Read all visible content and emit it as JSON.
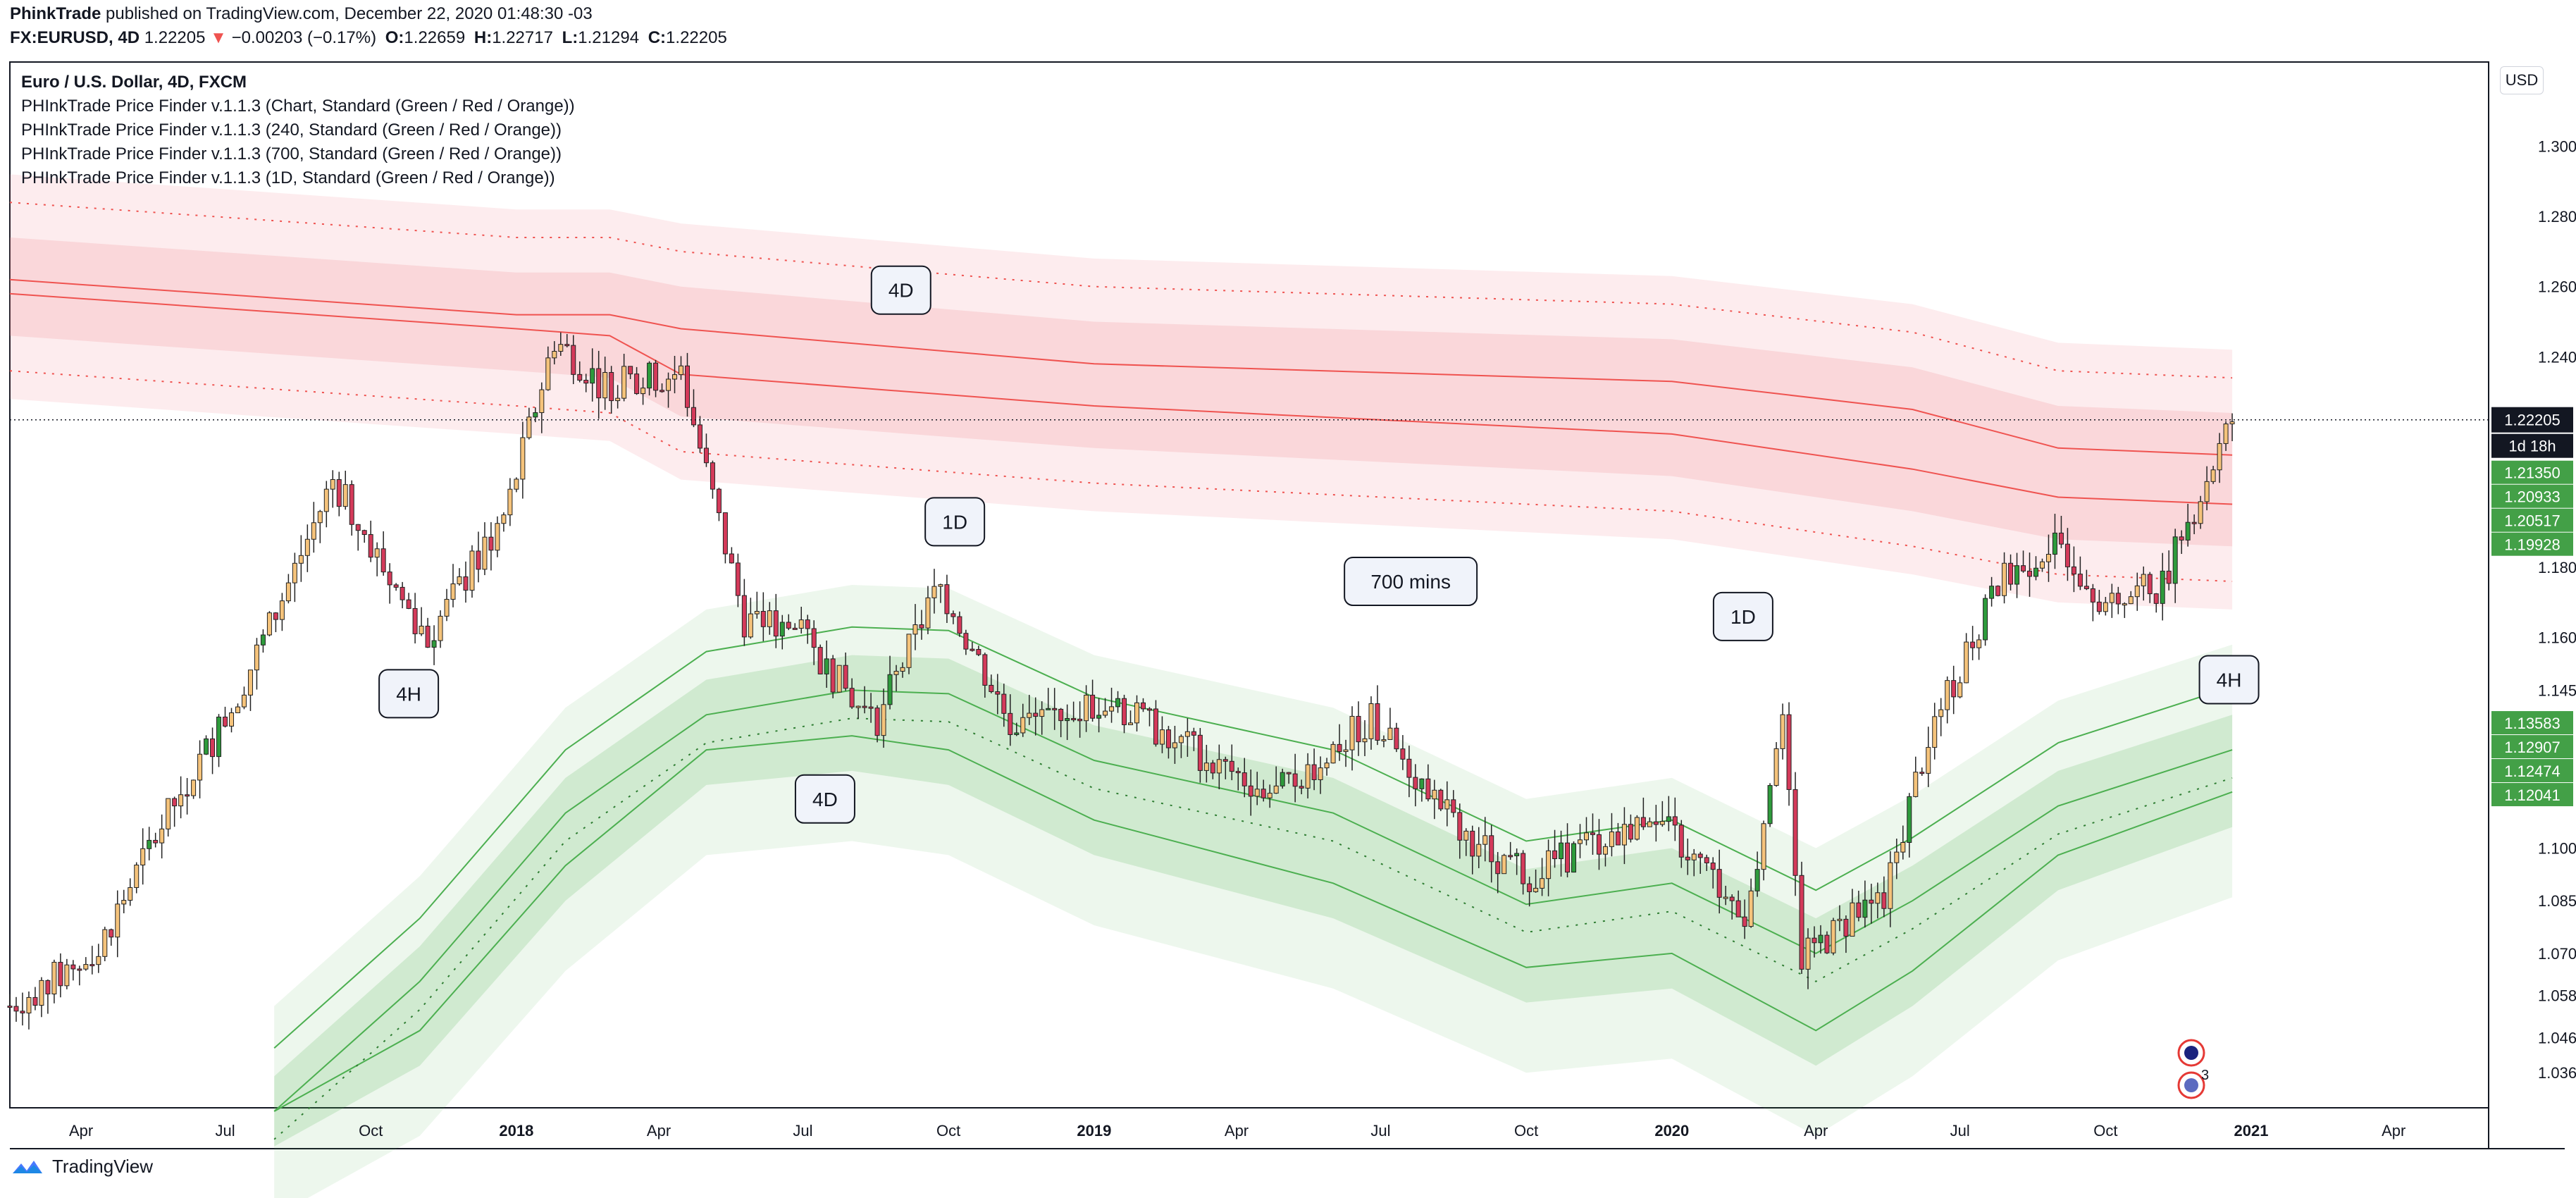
{
  "header": {
    "author": "PhinkTrade",
    "published_text": "published on TradingView.com, December 22, 2020 01:48:30 -03",
    "symbol": "FX:EURUSD, 4D",
    "last_price": "1.22205",
    "change_arrow": "▼",
    "change": "−0.00203 (−0.17%)",
    "o_label": "O:",
    "o": "1.22659",
    "h_label": "H:",
    "h": "1.22717",
    "l_label": "L:",
    "l": "1.21294",
    "c_label": "C:",
    "c": "1.22205"
  },
  "legend": {
    "title": "Euro / U.S. Dollar, 4D, FXCM",
    "indicators": [
      "PHInkTrade Price Finder v.1.1.3 (Chart, Standard (Green / Red / Orange))",
      "PHInkTrade Price Finder v.1.1.3 (240, Standard (Green / Red / Orange))",
      "PHInkTrade Price Finder v.1.1.3 (700, Standard (Green / Red / Orange))",
      "PHInkTrade Price Finder v.1.1.3 (1D, Standard (Green / Red / Orange))"
    ]
  },
  "currency_button": "USD",
  "footer": {
    "brand": "TradingView"
  },
  "colors": {
    "up_candle": "#f5c37b",
    "down_candle": "#d43a5a",
    "green_candle": "#2e9b3c",
    "red_band": "#f28b95",
    "green_band": "#4caf50",
    "axis_text": "#131722",
    "price_tag": "#131722"
  },
  "chart_data": {
    "type": "candlestick",
    "title": "Euro / U.S. Dollar, 4D, FXCM",
    "ylim": [
      1.026,
      1.324
    ],
    "y_ticks": [
      "1.30000",
      "1.28000",
      "1.26000",
      "1.24000",
      "1.18000",
      "1.16000",
      "1.14500",
      "1.10000",
      "1.08500",
      "1.07000",
      "1.05800",
      "1.04600",
      "1.03600"
    ],
    "y_top_partial": "1",
    "x_ticks": [
      "Apr",
      "Jul",
      "Oct",
      "2018",
      "Apr",
      "Jul",
      "Oct",
      "2019",
      "Apr",
      "Jul",
      "Oct",
      "2020",
      "Apr",
      "Jul",
      "Oct",
      "2021",
      "Apr"
    ],
    "x_range": [
      "2017-02-15",
      "2021-05-31"
    ],
    "current_price": {
      "value": 1.22205,
      "label": "1.22205",
      "countdown": "1d 18h"
    },
    "price_tags": [
      {
        "value": 1.2135,
        "label": "1.21350"
      },
      {
        "value": 1.20933,
        "label": "1.20933"
      },
      {
        "value": 1.20517,
        "label": "1.20517"
      },
      {
        "value": 1.19928,
        "label": "1.19928"
      },
      {
        "value": 1.13583,
        "label": "1.13583"
      },
      {
        "value": 1.12907,
        "label": "1.12907"
      },
      {
        "value": 1.12474,
        "label": "1.12474"
      },
      {
        "value": 1.12041,
        "label": "1.12041"
      }
    ],
    "anchors": [
      [
        "2017-02-15",
        1.055
      ],
      [
        "2017-04-10",
        1.07
      ],
      [
        "2017-05-20",
        1.105
      ],
      [
        "2017-07-05",
        1.14
      ],
      [
        "2017-08-05",
        1.17
      ],
      [
        "2017-09-07",
        1.205
      ],
      [
        "2017-10-15",
        1.175
      ],
      [
        "2017-11-06",
        1.16
      ],
      [
        "2017-12-25",
        1.195
      ],
      [
        "2018-01-25",
        1.245
      ],
      [
        "2018-02-25",
        1.232
      ],
      [
        "2018-04-15",
        1.235
      ],
      [
        "2018-05-25",
        1.165
      ],
      [
        "2018-06-25",
        1.163
      ],
      [
        "2018-08-15",
        1.135
      ],
      [
        "2018-09-25",
        1.175
      ],
      [
        "2018-11-10",
        1.135
      ],
      [
        "2019-01-08",
        1.142
      ],
      [
        "2019-04-25",
        1.115
      ],
      [
        "2019-06-25",
        1.137
      ],
      [
        "2019-08-20",
        1.105
      ],
      [
        "2019-10-01",
        1.092
      ],
      [
        "2019-12-20",
        1.11
      ],
      [
        "2020-02-18",
        1.08
      ],
      [
        "2020-03-10",
        1.14
      ],
      [
        "2020-03-23",
        1.068
      ],
      [
        "2020-05-15",
        1.088
      ],
      [
        "2020-06-10",
        1.13
      ],
      [
        "2020-07-25",
        1.175
      ],
      [
        "2020-09-01",
        1.188
      ],
      [
        "2020-10-01",
        1.17
      ],
      [
        "2020-11-05",
        1.175
      ],
      [
        "2020-12-20",
        1.222
      ]
    ],
    "bands": {
      "red_upper": [
        [
          "2017-02-15",
          1.262
        ],
        [
          "2018-01-01",
          1.252
        ],
        [
          "2018-03-01",
          1.252
        ],
        [
          "2018-04-15",
          1.248
        ],
        [
          "2019-01-01",
          1.238
        ],
        [
          "2020-01-01",
          1.233
        ],
        [
          "2020-06-01",
          1.225
        ],
        [
          "2020-09-01",
          1.214
        ],
        [
          "2020-12-20",
          1.212
        ]
      ],
      "red_lower": [
        [
          "2017-02-15",
          1.258
        ],
        [
          "2018-01-01",
          1.248
        ],
        [
          "2018-03-01",
          1.246
        ],
        [
          "2018-04-15",
          1.235
        ],
        [
          "2019-01-01",
          1.226
        ],
        [
          "2020-01-01",
          1.218
        ],
        [
          "2020-06-01",
          1.208
        ],
        [
          "2020-09-01",
          1.2
        ],
        [
          "2020-12-20",
          1.198
        ]
      ],
      "green_upper": [
        [
          "2017-08-01",
          1.025
        ],
        [
          "2017-11-01",
          1.062
        ],
        [
          "2018-02-01",
          1.11
        ],
        [
          "2018-05-01",
          1.138
        ],
        [
          "2018-08-01",
          1.145
        ],
        [
          "2018-10-01",
          1.144
        ],
        [
          "2019-01-01",
          1.125
        ],
        [
          "2019-06-01",
          1.11
        ],
        [
          "2019-10-01",
          1.084
        ],
        [
          "2020-01-01",
          1.09
        ],
        [
          "2020-04-01",
          1.07
        ],
        [
          "2020-06-01",
          1.085
        ],
        [
          "2020-09-01",
          1.112
        ],
        [
          "2020-12-20",
          1.128
        ]
      ],
      "green_lower": [
        [
          "2017-08-01",
          1.025
        ],
        [
          "2017-11-01",
          1.048
        ],
        [
          "2018-02-01",
          1.095
        ],
        [
          "2018-05-01",
          1.128
        ],
        [
          "2018-08-01",
          1.132
        ],
        [
          "2018-10-01",
          1.128
        ],
        [
          "2019-01-01",
          1.108
        ],
        [
          "2019-06-01",
          1.09
        ],
        [
          "2019-10-01",
          1.066
        ],
        [
          "2020-01-01",
          1.07
        ],
        [
          "2020-04-01",
          1.048
        ],
        [
          "2020-06-01",
          1.065
        ],
        [
          "2020-09-01",
          1.098
        ],
        [
          "2020-12-20",
          1.116
        ]
      ]
    },
    "callouts": [
      {
        "text": "4D",
        "date": "2018-09-01",
        "price": 1.259
      },
      {
        "text": "1D",
        "date": "2018-10-05",
        "price": 1.193
      },
      {
        "text": "700 mins",
        "date": "2019-07-20",
        "price": 1.176
      },
      {
        "text": "1D",
        "date": "2020-02-15",
        "price": 1.166
      },
      {
        "text": "4H",
        "date": "2017-10-25",
        "price": 1.144
      },
      {
        "text": "4D",
        "date": "2018-07-15",
        "price": 1.114
      },
      {
        "text": "4H",
        "date": "2020-12-18",
        "price": 1.148
      }
    ]
  }
}
